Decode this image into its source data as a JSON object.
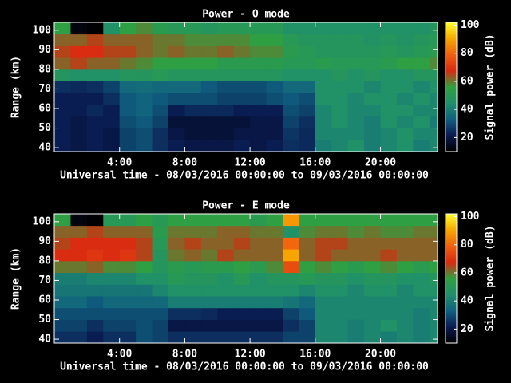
{
  "chart_data": [
    {
      "type": "heatmap",
      "title": "Power - O mode",
      "xlabel": "Universal time - 08/03/2016 00:00:00 to 09/03/2016 00:00:00",
      "ylabel": "Range (km)",
      "colorbar_label": "Signal power (dB)",
      "x_edges": [
        0,
        1,
        2,
        3,
        4,
        5,
        6,
        7,
        8,
        9,
        10,
        11,
        12,
        13,
        14,
        15,
        16,
        17,
        18,
        19,
        20,
        21,
        22,
        23,
        23.5
      ],
      "y_edges": [
        38,
        44,
        50,
        56,
        62,
        68,
        74,
        80,
        86,
        92,
        98,
        104
      ],
      "values": [
        [
          22,
          20,
          22,
          20,
          28,
          30,
          25,
          22,
          20,
          20,
          20,
          22,
          20,
          22,
          25,
          24,
          40,
          42,
          45,
          40,
          42,
          45,
          40,
          42
        ],
        [
          22,
          20,
          22,
          20,
          28,
          30,
          25,
          20,
          18,
          18,
          18,
          20,
          20,
          20,
          26,
          24,
          42,
          42,
          42,
          40,
          42,
          45,
          42,
          42
        ],
        [
          22,
          20,
          22,
          22,
          30,
          32,
          28,
          18,
          18,
          18,
          18,
          18,
          20,
          20,
          28,
          25,
          42,
          45,
          42,
          40,
          45,
          42,
          45,
          40
        ],
        [
          22,
          22,
          24,
          22,
          32,
          34,
          30,
          22,
          24,
          24,
          24,
          22,
          22,
          22,
          30,
          28,
          42,
          45,
          42,
          42,
          45,
          45,
          42,
          42
        ],
        [
          22,
          22,
          22,
          25,
          32,
          34,
          32,
          30,
          30,
          30,
          28,
          28,
          28,
          30,
          32,
          30,
          45,
          45,
          42,
          45,
          45,
          42,
          45,
          42
        ],
        [
          25,
          24,
          25,
          28,
          35,
          36,
          35,
          35,
          35,
          32,
          30,
          30,
          30,
          32,
          35,
          35,
          45,
          45,
          45,
          42,
          45,
          45,
          42,
          45
        ],
        [
          48,
          45,
          45,
          45,
          48,
          48,
          50,
          48,
          48,
          48,
          48,
          48,
          48,
          48,
          45,
          45,
          45,
          48,
          45,
          48,
          45,
          45,
          48,
          48
        ],
        [
          62,
          65,
          62,
          62,
          60,
          58,
          55,
          55,
          55,
          55,
          52,
          52,
          52,
          52,
          50,
          50,
          52,
          50,
          50,
          50,
          52,
          55,
          55,
          58
        ],
        [
          65,
          68,
          68,
          65,
          65,
          62,
          60,
          62,
          60,
          60,
          62,
          60,
          58,
          58,
          52,
          50,
          48,
          48,
          48,
          48,
          50,
          48,
          50,
          52
        ],
        [
          62,
          62,
          65,
          62,
          62,
          62,
          60,
          60,
          58,
          58,
          58,
          58,
          55,
          55,
          50,
          48,
          48,
          48,
          48,
          46,
          48,
          46,
          48,
          50
        ],
        [
          55,
          12,
          10,
          45,
          55,
          58,
          52,
          50,
          50,
          48,
          50,
          50,
          50,
          50,
          45,
          45,
          45,
          45,
          45,
          45,
          45,
          45,
          45,
          48
        ]
      ],
      "xlim": [
        0,
        23.5
      ],
      "ylim": [
        38,
        104
      ],
      "xticks": [
        {
          "value": 4,
          "label": "4:00"
        },
        {
          "value": 8,
          "label": "8:00"
        },
        {
          "value": 12,
          "label": "12:00"
        },
        {
          "value": 16,
          "label": "16:00"
        },
        {
          "value": 20,
          "label": "20:00"
        }
      ],
      "yticks": [
        40,
        50,
        60,
        70,
        80,
        90,
        100
      ],
      "clim": [
        10,
        102
      ],
      "cticks": [
        20,
        40,
        60,
        80,
        100
      ],
      "colormap": [
        "#000000",
        "#0a1a50",
        "#106080",
        "#20906a",
        "#30a040",
        "#d82a10",
        "#f06010",
        "#f8a800",
        "#ffff30"
      ]
    },
    {
      "type": "heatmap",
      "title": "Power - E mode",
      "xlabel": "Universal time - 08/03/2016 00:00:00 to 09/03/2016 00:00:00",
      "ylabel": "Range (km)",
      "colorbar_label": "Signal power (dB)",
      "x_edges": [
        0,
        1,
        2,
        3,
        4,
        5,
        6,
        7,
        8,
        9,
        10,
        11,
        12,
        13,
        14,
        15,
        16,
        17,
        18,
        19,
        20,
        21,
        22,
        23,
        23.5
      ],
      "y_edges": [
        38,
        44,
        50,
        56,
        62,
        68,
        74,
        80,
        86,
        92,
        98,
        104
      ],
      "values": [
        [
          25,
          25,
          22,
          25,
          25,
          30,
          28,
          25,
          25,
          25,
          25,
          25,
          25,
          25,
          28,
          28,
          42,
          42,
          40,
          42,
          40,
          42,
          40,
          42
        ],
        [
          28,
          28,
          25,
          28,
          28,
          30,
          28,
          20,
          20,
          20,
          20,
          20,
          20,
          20,
          25,
          28,
          42,
          42,
          40,
          42,
          45,
          42,
          40,
          42
        ],
        [
          30,
          30,
          30,
          30,
          30,
          30,
          30,
          25,
          25,
          24,
          22,
          22,
          22,
          22,
          28,
          32,
          42,
          42,
          42,
          42,
          42,
          42,
          40,
          42
        ],
        [
          35,
          35,
          32,
          35,
          35,
          35,
          35,
          40,
          40,
          40,
          40,
          40,
          40,
          40,
          38,
          35,
          42,
          42,
          42,
          42,
          42,
          42,
          42,
          42
        ],
        [
          38,
          38,
          38,
          38,
          38,
          38,
          42,
          45,
          45,
          45,
          45,
          45,
          45,
          45,
          45,
          42,
          45,
          45,
          42,
          45,
          45,
          42,
          45,
          45
        ],
        [
          40,
          40,
          42,
          42,
          42,
          45,
          45,
          50,
          48,
          48,
          45,
          50,
          45,
          48,
          48,
          50,
          48,
          48,
          45,
          48,
          48,
          45,
          45,
          48
        ],
        [
          60,
          60,
          62,
          58,
          58,
          55,
          48,
          52,
          50,
          52,
          52,
          55,
          52,
          58,
          75,
          55,
          58,
          55,
          52,
          55,
          58,
          55,
          52,
          55
        ],
        [
          68,
          68,
          70,
          68,
          70,
          65,
          48,
          60,
          62,
          60,
          65,
          62,
          62,
          62,
          90,
          62,
          65,
          62,
          62,
          62,
          65,
          62,
          62,
          62
        ],
        [
          65,
          68,
          68,
          68,
          68,
          65,
          50,
          62,
          65,
          62,
          62,
          65,
          62,
          62,
          80,
          62,
          65,
          65,
          62,
          62,
          62,
          62,
          62,
          62
        ],
        [
          62,
          62,
          65,
          62,
          62,
          62,
          52,
          60,
          60,
          60,
          62,
          62,
          60,
          60,
          45,
          58,
          60,
          60,
          58,
          60,
          58,
          58,
          60,
          60
        ],
        [
          55,
          12,
          10,
          50,
          50,
          55,
          50,
          55,
          55,
          55,
          55,
          55,
          52,
          55,
          88,
          55,
          55,
          55,
          55,
          55,
          55,
          55,
          55,
          55
        ]
      ],
      "xlim": [
        0,
        23.5
      ],
      "ylim": [
        38,
        104
      ],
      "xticks": [
        {
          "value": 4,
          "label": "4:00"
        },
        {
          "value": 8,
          "label": "8:00"
        },
        {
          "value": 12,
          "label": "12:00"
        },
        {
          "value": 16,
          "label": "16:00"
        },
        {
          "value": 20,
          "label": "20:00"
        }
      ],
      "yticks": [
        40,
        50,
        60,
        70,
        80,
        90,
        100
      ],
      "clim": [
        10,
        102
      ],
      "cticks": [
        20,
        40,
        60,
        80,
        100
      ],
      "colormap": [
        "#000000",
        "#0a1a50",
        "#106080",
        "#20906a",
        "#30a040",
        "#d82a10",
        "#f06010",
        "#f8a800",
        "#ffff30"
      ]
    }
  ]
}
